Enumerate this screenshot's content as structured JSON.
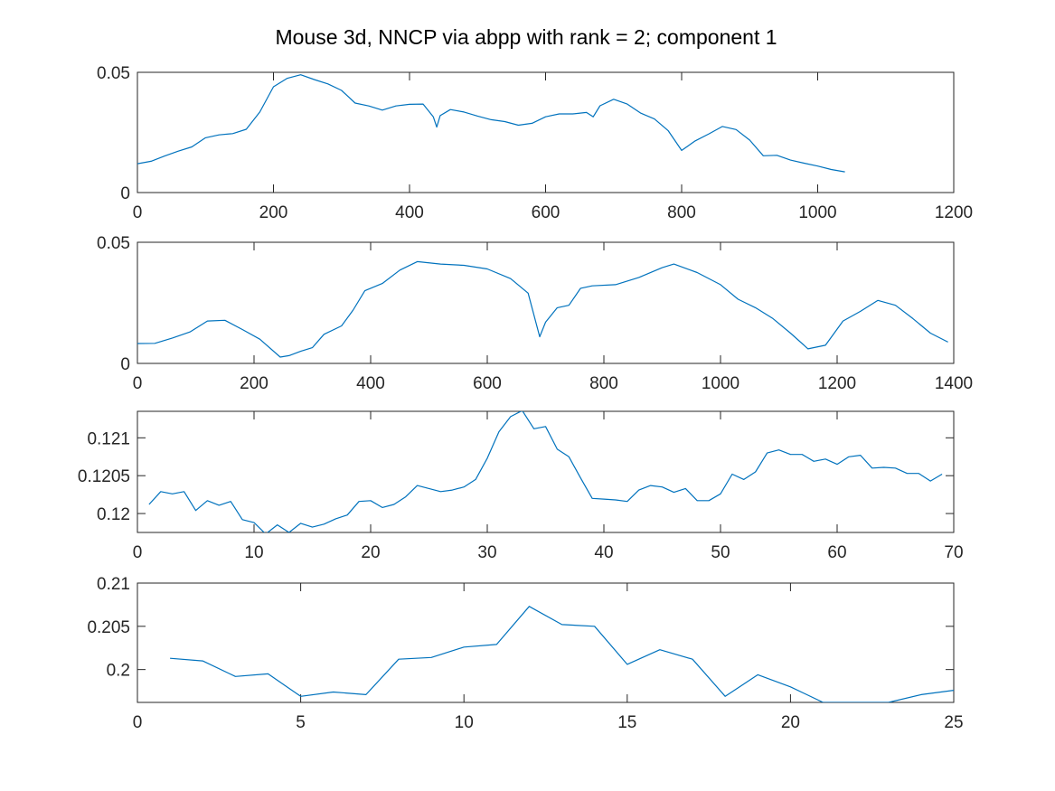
{
  "figure": {
    "title": "Mouse 3d, NNCP via abpp with rank = 2; component 1",
    "line_color": "#0072BD",
    "axis_color": "#262626",
    "background": "#ffffff"
  },
  "chart_data": [
    {
      "type": "line",
      "xlim": [
        0,
        1200
      ],
      "ylim": [
        0,
        0.05
      ],
      "xticks": [
        0,
        200,
        400,
        600,
        800,
        1000,
        1200
      ],
      "xtick_labels": [
        "0",
        "200",
        "400",
        "600",
        "800",
        "1000",
        "1200"
      ],
      "yticks": [
        0,
        0.05
      ],
      "ytick_labels": [
        "0",
        "0.05"
      ],
      "x": [
        0,
        20,
        40,
        60,
        80,
        100,
        120,
        140,
        160,
        180,
        200,
        220,
        240,
        260,
        280,
        300,
        320,
        340,
        360,
        380,
        400,
        420,
        435,
        440,
        445,
        460,
        480,
        500,
        520,
        540,
        560,
        580,
        600,
        620,
        640,
        660,
        670,
        680,
        700,
        720,
        740,
        760,
        780,
        800,
        820,
        840,
        860,
        880,
        900,
        920,
        940,
        960,
        980,
        1000,
        1020,
        1040
      ],
      "y": [
        0.012,
        0.013,
        0.0152,
        0.0172,
        0.019,
        0.0228,
        0.024,
        0.0245,
        0.0263,
        0.0335,
        0.044,
        0.0475,
        0.049,
        0.047,
        0.0452,
        0.0425,
        0.0372,
        0.036,
        0.0343,
        0.036,
        0.0367,
        0.0368,
        0.0315,
        0.0272,
        0.032,
        0.0345,
        0.0335,
        0.0318,
        0.0303,
        0.0295,
        0.028,
        0.0288,
        0.0315,
        0.0327,
        0.0327,
        0.0333,
        0.0315,
        0.0361,
        0.0388,
        0.0368,
        0.033,
        0.0306,
        0.0258,
        0.0175,
        0.0215,
        0.0244,
        0.0275,
        0.0262,
        0.0218,
        0.0153,
        0.0155,
        0.0135,
        0.0122,
        0.011,
        0.0096,
        0.0086
      ]
    },
    {
      "type": "line",
      "xlim": [
        0,
        1400
      ],
      "ylim": [
        0,
        0.05
      ],
      "xticks": [
        0,
        200,
        400,
        600,
        800,
        1000,
        1200,
        1400
      ],
      "xtick_labels": [
        "0",
        "200",
        "400",
        "600",
        "800",
        "1000",
        "1200",
        "1400"
      ],
      "yticks": [
        0,
        0.05
      ],
      "ytick_labels": [
        "0",
        "0.05"
      ],
      "x": [
        0,
        30,
        60,
        90,
        120,
        150,
        180,
        210,
        245,
        260,
        280,
        300,
        320,
        350,
        370,
        390,
        420,
        450,
        480,
        520,
        560,
        600,
        640,
        670,
        690,
        700,
        720,
        740,
        760,
        780,
        820,
        860,
        900,
        920,
        960,
        1000,
        1030,
        1060,
        1090,
        1120,
        1150,
        1180,
        1210,
        1240,
        1270,
        1300,
        1330,
        1360,
        1390
      ],
      "y": [
        0.0082,
        0.0083,
        0.0105,
        0.013,
        0.0175,
        0.0178,
        0.014,
        0.01,
        0.0026,
        0.0032,
        0.005,
        0.0065,
        0.012,
        0.0155,
        0.022,
        0.03,
        0.033,
        0.0385,
        0.042,
        0.041,
        0.0405,
        0.039,
        0.035,
        0.029,
        0.011,
        0.017,
        0.023,
        0.024,
        0.031,
        0.032,
        0.0325,
        0.0355,
        0.0395,
        0.041,
        0.0375,
        0.0325,
        0.0265,
        0.023,
        0.0185,
        0.0125,
        0.006,
        0.0075,
        0.0175,
        0.0215,
        0.026,
        0.024,
        0.0185,
        0.0125,
        0.0088
      ]
    },
    {
      "type": "line",
      "xlim": [
        0,
        70
      ],
      "ylim": [
        0.11975,
        0.12135
      ],
      "xticks": [
        0,
        10,
        20,
        30,
        40,
        50,
        60,
        70
      ],
      "xtick_labels": [
        "0",
        "10",
        "20",
        "30",
        "40",
        "50",
        "60",
        "70"
      ],
      "yticks": [
        0.12,
        0.1205,
        0.121
      ],
      "ytick_labels": [
        "0.12",
        "0.1205",
        "0.121"
      ],
      "x": [
        1,
        2,
        3,
        4,
        5,
        6,
        7,
        8,
        9,
        10,
        11,
        12,
        13,
        14,
        15,
        16,
        17,
        18,
        19,
        20,
        21,
        22,
        23,
        24,
        25,
        26,
        27,
        28,
        29,
        30,
        31,
        32,
        33,
        34,
        35,
        36,
        37,
        38,
        39,
        40,
        41,
        42,
        43,
        44,
        45,
        46,
        47,
        48,
        49,
        50,
        51,
        52,
        53,
        54,
        55,
        56,
        57,
        58,
        59,
        60,
        61,
        62,
        63,
        64,
        65,
        66,
        67,
        68,
        69
      ],
      "y": [
        0.12012,
        0.12029,
        0.12026,
        0.12029,
        0.12004,
        0.12017,
        0.12011,
        0.12016,
        0.11992,
        0.11988,
        0.11973,
        0.11985,
        0.11975,
        0.11987,
        0.11982,
        0.11986,
        0.11993,
        0.11998,
        0.12016,
        0.12017,
        0.12008,
        0.12012,
        0.12022,
        0.12037,
        0.12033,
        0.12029,
        0.12031,
        0.12035,
        0.12045,
        0.12073,
        0.12108,
        0.12128,
        0.12136,
        0.12112,
        0.12115,
        0.12085,
        0.12075,
        0.12047,
        0.1202,
        0.12019,
        0.12018,
        0.12016,
        0.12031,
        0.12037,
        0.12035,
        0.12028,
        0.12033,
        0.12017,
        0.12017,
        0.12026,
        0.12052,
        0.12045,
        0.12055,
        0.1208,
        0.12084,
        0.12078,
        0.12078,
        0.12069,
        0.12072,
        0.12065,
        0.12075,
        0.12077,
        0.1206,
        0.12061,
        0.1206,
        0.12053,
        0.12053,
        0.12043,
        0.12052
      ]
    },
    {
      "type": "line",
      "xlim": [
        0,
        25
      ],
      "ylim": [
        0.1962,
        0.21
      ],
      "xticks": [
        0,
        5,
        10,
        15,
        20,
        25
      ],
      "xtick_labels": [
        "0",
        "5",
        "10",
        "15",
        "20",
        "25"
      ],
      "yticks": [
        0.2,
        0.205,
        0.21
      ],
      "ytick_labels": [
        "0.2",
        "0.205",
        "0.21"
      ],
      "x": [
        1,
        2,
        3,
        4,
        5,
        6,
        7,
        8,
        9,
        10,
        11,
        12,
        13,
        14,
        15,
        16,
        17,
        18,
        19,
        20,
        21,
        22,
        23,
        24,
        25
      ],
      "y": [
        0.2013,
        0.201,
        0.1992,
        0.1995,
        0.1969,
        0.1974,
        0.1971,
        0.2012,
        0.2014,
        0.2026,
        0.2029,
        0.2073,
        0.2052,
        0.205,
        0.2006,
        0.2023,
        0.2012,
        0.1969,
        0.1994,
        0.198,
        0.1962,
        0.1962,
        0.1962,
        0.1971,
        0.1976
      ]
    }
  ]
}
